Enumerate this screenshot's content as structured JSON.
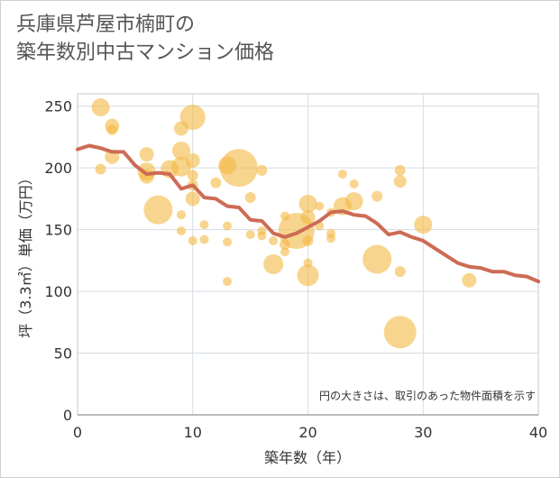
{
  "title_lines": [
    "兵庫県芦屋市楠町の",
    "築年数別中古マンション価格"
  ],
  "chart_data": {
    "type": "scatter",
    "xlabel": "築年数（年）",
    "ylabel": "坪（3.3㎡）単価（万円）",
    "xlim": [
      0,
      40
    ],
    "ylim": [
      0,
      260
    ],
    "xticks": [
      0,
      10,
      20,
      30,
      40
    ],
    "yticks": [
      0,
      50,
      100,
      150,
      200,
      250
    ],
    "grid": true,
    "note": "円の大きさは、取引のあった物件面積を示す",
    "colors": {
      "bubble": "#f4b942",
      "line": "#cd6b55"
    },
    "bubbles": [
      {
        "x": 2,
        "y": 249,
        "s": 10
      },
      {
        "x": 2,
        "y": 199,
        "s": 6
      },
      {
        "x": 3,
        "y": 234,
        "s": 8
      },
      {
        "x": 3,
        "y": 231,
        "s": 6
      },
      {
        "x": 3,
        "y": 209,
        "s": 8
      },
      {
        "x": 6,
        "y": 211,
        "s": 8
      },
      {
        "x": 6,
        "y": 197,
        "s": 10
      },
      {
        "x": 6,
        "y": 193,
        "s": 8
      },
      {
        "x": 7,
        "y": 166,
        "s": 16
      },
      {
        "x": 8,
        "y": 199,
        "s": 10
      },
      {
        "x": 9,
        "y": 232,
        "s": 8
      },
      {
        "x": 9,
        "y": 214,
        "s": 10
      },
      {
        "x": 9,
        "y": 201,
        "s": 11
      },
      {
        "x": 9,
        "y": 162,
        "s": 5
      },
      {
        "x": 9,
        "y": 149,
        "s": 5
      },
      {
        "x": 10,
        "y": 241,
        "s": 14
      },
      {
        "x": 10,
        "y": 206,
        "s": 8
      },
      {
        "x": 10,
        "y": 194,
        "s": 6
      },
      {
        "x": 10,
        "y": 186,
        "s": 6
      },
      {
        "x": 10,
        "y": 175,
        "s": 8
      },
      {
        "x": 10,
        "y": 141,
        "s": 5
      },
      {
        "x": 11,
        "y": 154,
        "s": 5
      },
      {
        "x": 11,
        "y": 142,
        "s": 5
      },
      {
        "x": 12,
        "y": 188,
        "s": 6
      },
      {
        "x": 13,
        "y": 202,
        "s": 10
      },
      {
        "x": 13,
        "y": 153,
        "s": 5
      },
      {
        "x": 13,
        "y": 140,
        "s": 5
      },
      {
        "x": 13,
        "y": 108,
        "s": 5
      },
      {
        "x": 14,
        "y": 200,
        "s": 21
      },
      {
        "x": 15,
        "y": 176,
        "s": 6
      },
      {
        "x": 15,
        "y": 146,
        "s": 5
      },
      {
        "x": 16,
        "y": 198,
        "s": 6
      },
      {
        "x": 16,
        "y": 149,
        "s": 5
      },
      {
        "x": 16,
        "y": 145,
        "s": 5
      },
      {
        "x": 17,
        "y": 141,
        "s": 5
      },
      {
        "x": 17,
        "y": 122,
        "s": 11
      },
      {
        "x": 18,
        "y": 161,
        "s": 5
      },
      {
        "x": 18,
        "y": 138,
        "s": 6
      },
      {
        "x": 18,
        "y": 132,
        "s": 5
      },
      {
        "x": 19,
        "y": 149,
        "s": 20
      },
      {
        "x": 20,
        "y": 171,
        "s": 10
      },
      {
        "x": 20,
        "y": 160,
        "s": 8
      },
      {
        "x": 20,
        "y": 141,
        "s": 6
      },
      {
        "x": 20,
        "y": 123,
        "s": 5
      },
      {
        "x": 20,
        "y": 113,
        "s": 12
      },
      {
        "x": 21,
        "y": 169,
        "s": 5
      },
      {
        "x": 21,
        "y": 153,
        "s": 5
      },
      {
        "x": 22,
        "y": 164,
        "s": 5
      },
      {
        "x": 22,
        "y": 147,
        "s": 5
      },
      {
        "x": 22,
        "y": 143,
        "s": 5
      },
      {
        "x": 23,
        "y": 195,
        "s": 5
      },
      {
        "x": 23,
        "y": 169,
        "s": 10
      },
      {
        "x": 24,
        "y": 187,
        "s": 5
      },
      {
        "x": 24,
        "y": 173,
        "s": 10
      },
      {
        "x": 26,
        "y": 177,
        "s": 6
      },
      {
        "x": 26,
        "y": 126,
        "s": 16
      },
      {
        "x": 28,
        "y": 198,
        "s": 6
      },
      {
        "x": 28,
        "y": 189,
        "s": 7
      },
      {
        "x": 28,
        "y": 116,
        "s": 6
      },
      {
        "x": 28,
        "y": 67,
        "s": 18
      },
      {
        "x": 30,
        "y": 154,
        "s": 10
      },
      {
        "x": 34,
        "y": 109,
        "s": 8
      }
    ],
    "trend": {
      "x": [
        0,
        1,
        2,
        3,
        4,
        5,
        6,
        7,
        8,
        9,
        10,
        11,
        12,
        13,
        14,
        15,
        16,
        17,
        18,
        19,
        20,
        21,
        22,
        23,
        24,
        25,
        26,
        27,
        28,
        29,
        30,
        31,
        32,
        33,
        34,
        35,
        36,
        37,
        38,
        39,
        40
      ],
      "y": [
        215,
        218,
        216,
        213,
        213,
        202,
        195,
        196,
        195,
        183,
        186,
        176,
        175,
        169,
        168,
        158,
        157,
        147,
        144,
        147,
        152,
        157,
        164,
        165,
        162,
        161,
        155,
        146,
        148,
        144,
        141,
        135,
        129,
        123,
        120,
        119,
        116,
        116,
        113,
        112,
        108
      ]
    }
  }
}
